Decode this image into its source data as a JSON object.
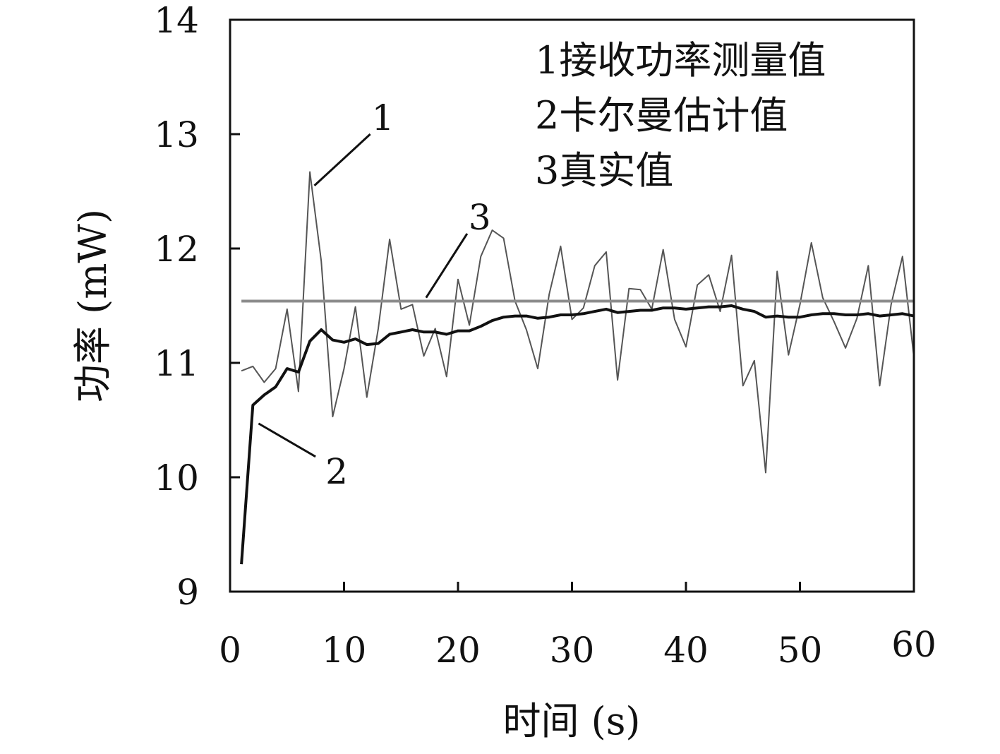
{
  "chart_data": {
    "type": "line",
    "xlabel": "时间 (s)",
    "ylabel": "功率 (mW)",
    "xlim": [
      0,
      60
    ],
    "ylim": [
      9,
      14
    ],
    "x_ticks": [
      0,
      10,
      20,
      30,
      40,
      50,
      60
    ],
    "y_ticks": [
      9,
      10,
      11,
      12,
      13,
      14
    ],
    "grid": false,
    "legend": {
      "placement": "top-right",
      "entries": [
        "1接收功率测量值",
        "2卡尔曼估计值",
        "3真实值"
      ]
    },
    "series": [
      {
        "color": "#555555",
        "x": [
          1,
          2,
          3,
          4,
          5,
          6,
          7,
          8,
          9,
          10,
          11,
          12,
          13,
          14,
          15,
          16,
          17,
          18,
          19,
          20,
          21,
          22,
          23,
          24,
          25,
          26,
          27,
          28,
          29,
          30,
          31,
          32,
          33,
          34,
          35,
          36,
          37,
          38,
          39,
          40,
          41,
          42,
          43,
          44,
          45,
          46,
          47,
          48,
          49,
          50,
          51,
          52,
          53,
          54,
          55,
          56,
          57,
          58,
          59,
          60
        ],
        "values": [
          10.93,
          10.97,
          10.83,
          10.95,
          11.47,
          10.75,
          12.67,
          11.89,
          10.53,
          10.95,
          11.49,
          10.7,
          11.3,
          12.08,
          11.47,
          11.51,
          11.06,
          11.3,
          10.88,
          11.73,
          11.33,
          11.93,
          12.16,
          12.09,
          11.54,
          11.29,
          10.95,
          11.6,
          12.02,
          11.38,
          11.48,
          11.85,
          11.97,
          10.85,
          11.65,
          11.64,
          11.47,
          11.99,
          11.38,
          11.14,
          11.68,
          11.77,
          11.45,
          11.94,
          10.8,
          11.02,
          10.04,
          11.8,
          11.07,
          11.51,
          12.05,
          11.57,
          11.36,
          11.13,
          11.39,
          11.85,
          10.8,
          11.51,
          11.93,
          11.05
        ]
      },
      {
        "color": "#111111",
        "x": [
          1,
          2,
          3,
          4,
          5,
          6,
          7,
          8,
          9,
          10,
          11,
          12,
          13,
          14,
          15,
          16,
          17,
          18,
          19,
          20,
          21,
          22,
          23,
          24,
          25,
          26,
          27,
          28,
          29,
          30,
          31,
          32,
          33,
          34,
          35,
          36,
          37,
          38,
          39,
          40,
          41,
          42,
          43,
          44,
          45,
          46,
          47,
          48,
          49,
          50,
          51,
          52,
          53,
          54,
          55,
          56,
          57,
          58,
          59,
          60
        ],
        "values": [
          9.24,
          10.63,
          10.72,
          10.79,
          10.95,
          10.92,
          11.19,
          11.29,
          11.2,
          11.18,
          11.21,
          11.16,
          11.17,
          11.25,
          11.27,
          11.29,
          11.27,
          11.27,
          11.25,
          11.28,
          11.28,
          11.32,
          11.37,
          11.4,
          11.41,
          11.41,
          11.39,
          11.4,
          11.42,
          11.42,
          11.43,
          11.45,
          11.47,
          11.44,
          11.45,
          11.46,
          11.46,
          11.48,
          11.48,
          11.47,
          11.48,
          11.49,
          11.49,
          11.5,
          11.47,
          11.45,
          11.4,
          11.41,
          11.4,
          11.4,
          11.42,
          11.43,
          11.43,
          11.42,
          11.42,
          11.43,
          11.41,
          11.42,
          11.43,
          11.41
        ]
      },
      {
        "color": "#8c8c8c",
        "x": [
          1,
          60
        ],
        "values": [
          11.54,
          11.54
        ]
      }
    ],
    "annotations": [
      {
        "text": "1",
        "series": 0,
        "from": [
          7.4,
          12.55
        ],
        "to": [
          12.3,
          13.0
        ]
      },
      {
        "text": "2",
        "series": 1,
        "from": [
          2.5,
          10.47
        ],
        "to": [
          7.5,
          10.18
        ]
      },
      {
        "text": "3",
        "series": 2,
        "from": [
          17.2,
          11.57
        ],
        "to": [
          20.8,
          12.13
        ]
      }
    ]
  }
}
